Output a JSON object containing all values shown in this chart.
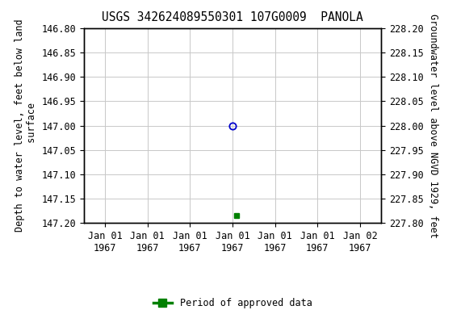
{
  "title": "USGS 342624089550301 107G0009  PANOLA",
  "left_ylabel": "Depth to water level, feet below land\n surface",
  "right_ylabel": "Groundwater level above NGVD 1929, feet",
  "ylim_left_top": 146.8,
  "ylim_left_bottom": 147.2,
  "ylim_right_top": 228.2,
  "ylim_right_bottom": 227.8,
  "yticks_left": [
    146.8,
    146.85,
    146.9,
    146.95,
    147.0,
    147.05,
    147.1,
    147.15,
    147.2
  ],
  "yticks_right": [
    228.2,
    228.15,
    228.1,
    228.05,
    228.0,
    227.95,
    227.9,
    227.85,
    227.8
  ],
  "ytick_labels_right": [
    "228.20",
    "228.15",
    "228.10",
    "228.05",
    "228.00",
    "227.95",
    "227.90",
    "227.85",
    "227.80"
  ],
  "x_tick_positions": [
    0,
    1,
    2,
    3,
    4,
    5,
    6
  ],
  "x_tick_labels": [
    "Jan 01\n1967",
    "Jan 01\n1967",
    "Jan 01\n1967",
    "Jan 01\n1967",
    "Jan 01\n1967",
    "Jan 01\n1967",
    "Jan 02\n1967"
  ],
  "xlim": [
    -0.5,
    6.5
  ],
  "blue_point_x": 3.0,
  "blue_point_y": 147.0,
  "green_point_x": 3.1,
  "green_point_y": 147.185,
  "bg_color": "#ffffff",
  "grid_color": "#c8c8c8",
  "blue_marker_color": "#0000cc",
  "green_marker_color": "#008000",
  "legend_label": "Period of approved data",
  "title_fontsize": 10.5,
  "axis_label_fontsize": 8.5,
  "tick_fontsize": 8.5
}
